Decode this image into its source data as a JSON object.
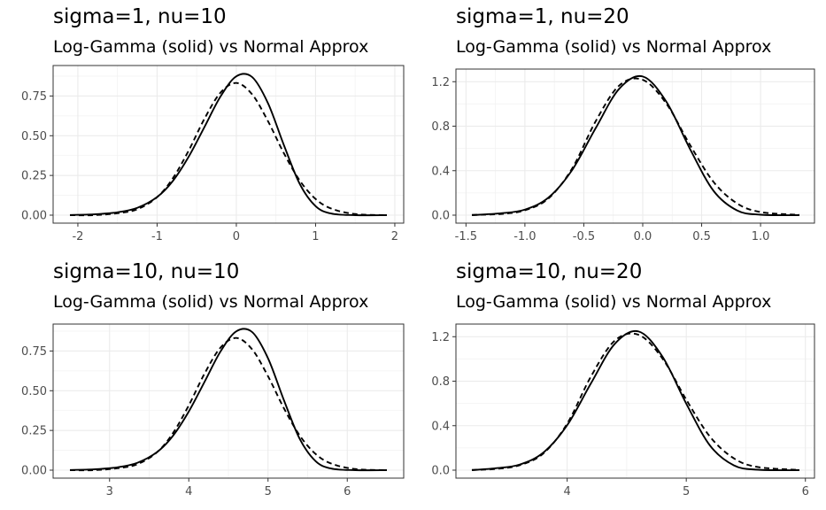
{
  "chart_data": [
    {
      "type": "line",
      "title": "sigma=1, nu=10",
      "subtitle": "Log-Gamma (solid) vs Normal Approx",
      "sigma": 1,
      "nu": 10,
      "xlim": [
        -2.1,
        1.9
      ],
      "ylim": [
        0,
        0.875
      ],
      "xticks": [
        -2,
        -1,
        0,
        1,
        2
      ],
      "xtick_labels": [
        "-2",
        "-1",
        "0",
        "1",
        "2"
      ],
      "yticks": [
        0,
        0.25,
        0.5,
        0.75
      ],
      "ytick_labels": [
        "0.00",
        "0.25",
        "0.50",
        "0.75"
      ],
      "grid": true,
      "series": [
        {
          "style": "solid",
          "x": [
            -2.1,
            -1.8,
            -1.5,
            -1.25,
            -1.0,
            -0.8,
            -0.6,
            -0.4,
            -0.2,
            0.0,
            0.2,
            0.4,
            0.6,
            0.8,
            1.0,
            1.2,
            1.5,
            1.9
          ],
          "y": [
            0.001,
            0.005,
            0.018,
            0.046,
            0.114,
            0.216,
            0.369,
            0.557,
            0.747,
            0.874,
            0.869,
            0.704,
            0.441,
            0.197,
            0.057,
            0.01,
            0.0,
            0.0
          ]
        },
        {
          "style": "dashed",
          "x": [
            -2.1,
            -1.8,
            -1.5,
            -1.25,
            -1.0,
            -0.8,
            -0.6,
            -0.4,
            -0.2,
            0.0,
            0.2,
            0.4,
            0.6,
            0.8,
            1.0,
            1.2,
            1.5,
            1.9
          ],
          "y": [
            0.0,
            0.0,
            0.012,
            0.037,
            0.113,
            0.233,
            0.408,
            0.609,
            0.771,
            0.832,
            0.76,
            0.591,
            0.39,
            0.218,
            0.102,
            0.041,
            0.007,
            0.0
          ]
        }
      ]
    },
    {
      "type": "line",
      "title": "sigma=1, nu=20",
      "subtitle": "Log-Gamma (solid) vs Normal Approx",
      "sigma": 1,
      "nu": 20,
      "xlim": [
        -1.45,
        1.33
      ],
      "ylim": [
        0,
        1.25
      ],
      "xticks": [
        -1.5,
        -1.0,
        -0.5,
        0.0,
        0.5,
        1.0
      ],
      "xtick_labels": [
        "-1.5",
        "-1.0",
        "-0.5",
        "0.0",
        "0.5",
        "1.0"
      ],
      "yticks": [
        0,
        0.4,
        0.8,
        1.2
      ],
      "ytick_labels": [
        "0.0",
        "0.4",
        "0.8",
        "1.2"
      ],
      "grid": true,
      "series": [
        {
          "style": "solid",
          "x": [
            -1.45,
            -1.2,
            -1.0,
            -0.8,
            -0.6,
            -0.4,
            -0.2,
            0.0,
            0.2,
            0.4,
            0.6,
            0.8,
            1.0,
            1.33
          ],
          "y": [
            0.0,
            0.017,
            0.05,
            0.158,
            0.404,
            0.781,
            1.136,
            1.247,
            1.021,
            0.598,
            0.22,
            0.043,
            0.004,
            0.0
          ]
        },
        {
          "style": "dashed",
          "x": [
            -1.45,
            -1.2,
            -1.0,
            -0.8,
            -0.6,
            -0.4,
            -0.2,
            0.0,
            0.2,
            0.4,
            0.6,
            0.8,
            1.0,
            1.33
          ],
          "y": [
            0.002,
            0.011,
            0.044,
            0.15,
            0.418,
            0.843,
            1.165,
            1.217,
            1.004,
            0.634,
            0.3,
            0.106,
            0.028,
            0.002
          ]
        }
      ]
    },
    {
      "type": "line",
      "title": "sigma=10, nu=10",
      "subtitle": "Log-Gamma (solid) vs Normal Approx",
      "sigma": 10,
      "nu": 10,
      "xlim": [
        2.5,
        6.5
      ],
      "ylim": [
        0,
        0.875
      ],
      "xticks": [
        3,
        4,
        5,
        6
      ],
      "xtick_labels": [
        "3",
        "4",
        "5",
        "6"
      ],
      "yticks": [
        0,
        0.25,
        0.5,
        0.75
      ],
      "ytick_labels": [
        "0.00",
        "0.25",
        "0.50",
        "0.75"
      ],
      "grid": true,
      "series": [
        {
          "style": "solid",
          "x": [
            2.5,
            2.8,
            3.1,
            3.35,
            3.6,
            3.8,
            4.0,
            4.2,
            4.4,
            4.6,
            4.8,
            5.0,
            5.2,
            5.4,
            5.6,
            5.8,
            6.1,
            6.5
          ],
          "y": [
            0.001,
            0.005,
            0.018,
            0.046,
            0.114,
            0.216,
            0.369,
            0.557,
            0.747,
            0.874,
            0.869,
            0.704,
            0.441,
            0.197,
            0.057,
            0.01,
            0.0,
            0.0
          ]
        },
        {
          "style": "dashed",
          "x": [
            2.5,
            2.8,
            3.1,
            3.35,
            3.6,
            3.8,
            4.0,
            4.2,
            4.4,
            4.6,
            4.8,
            5.0,
            5.2,
            5.4,
            5.6,
            5.8,
            6.1,
            6.5
          ],
          "y": [
            0.0,
            0.0,
            0.012,
            0.037,
            0.113,
            0.233,
            0.408,
            0.609,
            0.771,
            0.832,
            0.76,
            0.591,
            0.39,
            0.218,
            0.102,
            0.041,
            0.007,
            0.0
          ]
        }
      ]
    },
    {
      "type": "line",
      "title": "sigma=10, nu=20",
      "subtitle": "Log-Gamma (solid) vs Normal Approx",
      "sigma": 10,
      "nu": 20,
      "xlim": [
        3.2,
        5.95
      ],
      "ylim": [
        0,
        1.25
      ],
      "xticks": [
        4,
        5,
        6
      ],
      "xtick_labels": [
        "4",
        "5",
        "6"
      ],
      "yticks": [
        0,
        0.4,
        0.8,
        1.2
      ],
      "ytick_labels": [
        "0.0",
        "0.4",
        "0.8",
        "1.2"
      ],
      "grid": true,
      "series": [
        {
          "style": "solid",
          "x": [
            3.2,
            3.4,
            3.6,
            3.8,
            4.0,
            4.2,
            4.4,
            4.6,
            4.8,
            5.0,
            5.2,
            5.4,
            5.6,
            5.95
          ],
          "y": [
            0.0,
            0.017,
            0.05,
            0.158,
            0.404,
            0.781,
            1.136,
            1.247,
            1.021,
            0.598,
            0.22,
            0.043,
            0.004,
            0.0
          ]
        },
        {
          "style": "dashed",
          "x": [
            3.2,
            3.4,
            3.6,
            3.8,
            4.0,
            4.2,
            4.4,
            4.6,
            4.8,
            5.0,
            5.2,
            5.4,
            5.6,
            5.95
          ],
          "y": [
            0.002,
            0.011,
            0.044,
            0.15,
            0.418,
            0.843,
            1.165,
            1.217,
            1.004,
            0.634,
            0.3,
            0.106,
            0.028,
            0.002
          ]
        }
      ]
    }
  ]
}
